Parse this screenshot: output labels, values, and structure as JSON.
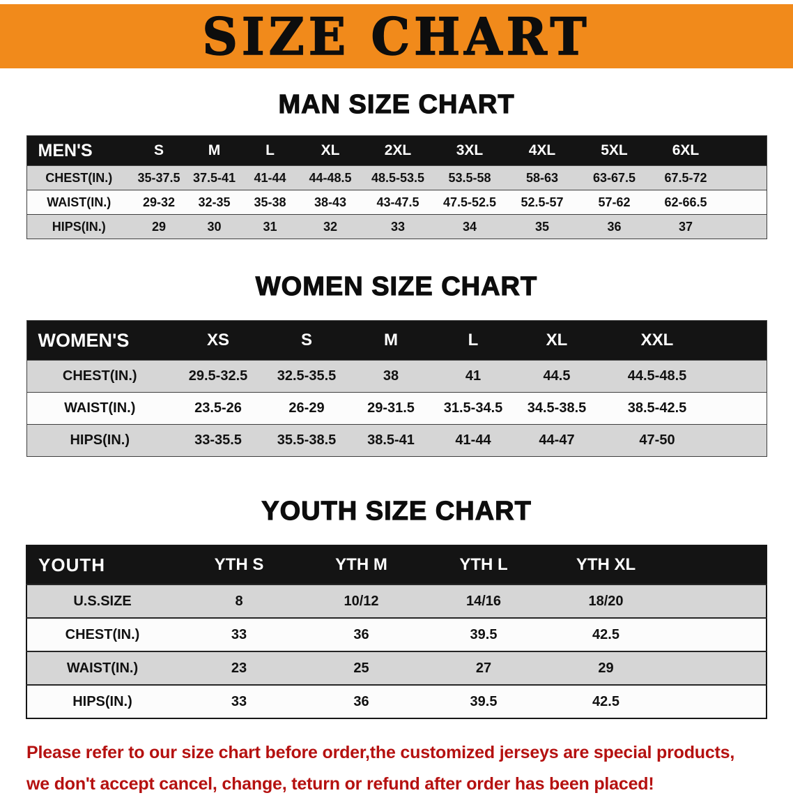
{
  "banner": {
    "title": "SIZE CHART"
  },
  "chart_data": [
    {
      "type": "table",
      "title": "MAN SIZE CHART",
      "header": [
        "MEN'S",
        "S",
        "M",
        "L",
        "XL",
        "2XL",
        "3XL",
        "4XL",
        "5XL",
        "6XL"
      ],
      "rows": [
        [
          "CHEST(IN.)",
          "35-37.5",
          "37.5-41",
          "41-44",
          "44-48.5",
          "48.5-53.5",
          "53.5-58",
          "58-63",
          "63-67.5",
          "67.5-72"
        ],
        [
          "WAIST(IN.)",
          "29-32",
          "32-35",
          "35-38",
          "38-43",
          "43-47.5",
          "47.5-52.5",
          "52.5-57",
          "57-62",
          "62-66.5"
        ],
        [
          "HIPS(IN.)",
          "29",
          "30",
          "31",
          "32",
          "33",
          "34",
          "35",
          "36",
          "37"
        ]
      ]
    },
    {
      "type": "table",
      "title": "WOMEN SIZE CHART",
      "header": [
        "WOMEN'S",
        "XS",
        "S",
        "M",
        "L",
        "XL",
        "XXL"
      ],
      "rows": [
        [
          "CHEST(IN.)",
          "29.5-32.5",
          "32.5-35.5",
          "38",
          "41",
          "44.5",
          "44.5-48.5"
        ],
        [
          "WAIST(IN.)",
          "23.5-26",
          "26-29",
          "29-31.5",
          "31.5-34.5",
          "34.5-38.5",
          "38.5-42.5"
        ],
        [
          "HIPS(IN.)",
          "33-35.5",
          "35.5-38.5",
          "38.5-41",
          "41-44",
          "44-47",
          "47-50"
        ]
      ]
    },
    {
      "type": "table",
      "title": "YOUTH SIZE CHART",
      "header": [
        "YOUTH",
        "YTH S",
        "YTH M",
        "YTH L",
        "YTH XL"
      ],
      "rows": [
        [
          "U.S.SIZE",
          "8",
          "10/12",
          "14/16",
          "18/20"
        ],
        [
          "CHEST(IN.)",
          "33",
          "36",
          "39.5",
          "42.5"
        ],
        [
          "WAIST(IN.)",
          "23",
          "25",
          "27",
          "29"
        ],
        [
          "HIPS(IN.)",
          "33",
          "36",
          "39.5",
          "42.5"
        ]
      ]
    }
  ],
  "footer": {
    "line1": "Please refer to our size chart before order,the customized jerseys are special products,",
    "line2": "we don't accept cancel, change, teturn or refund after order has been placed!"
  },
  "colors": {
    "banner_orange": "#f18a1b",
    "header_black": "#141414",
    "row_gray": "#d6d6d6",
    "notice_red": "#b51110"
  }
}
